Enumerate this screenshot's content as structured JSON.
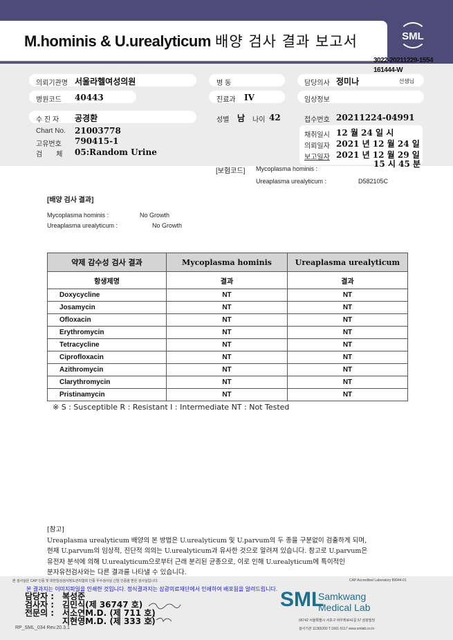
{
  "header": {
    "title_en": "M.hominis & U.urealyticum",
    "title_ko": "배양 검사 결과 보고서",
    "logo": "SML",
    "doc_id_1": "3022-20211229-1554",
    "doc_id_2": "161444-W"
  },
  "patient": {
    "institution_label": "의뢰기관명",
    "institution": "서울라헬여성의원",
    "ward_label": "병 동",
    "doctor_label": "담당의사",
    "doctor": "정미나",
    "doctor_suffix": "선생님",
    "hospital_code_label": "병원코드",
    "hospital_code": "40443",
    "dept_label": "진료과",
    "dept": "IV",
    "clinical_label": "임상정보",
    "name_label": "수 진 자",
    "name": "공경환",
    "sex_label": "성별",
    "sex": "남",
    "age_label": "나이",
    "age": "42",
    "receipt_label": "접수번호",
    "receipt": "20211224-04991",
    "chart_label": "Chart No.",
    "chart": "21003778",
    "uid_label": "고유번호",
    "uid": "790415-1",
    "specimen_label": "검　　체",
    "specimen": "05:Random Urine",
    "collect_label": "채취일시",
    "collect": "12 월 24 일 시",
    "request_label": "의뢰일자",
    "request": "2021 년 12 월 24 일",
    "report_label": "보고일자",
    "report": "2021 년 12 월 29 일",
    "report_time": "15 시 45 분"
  },
  "insurance": {
    "label": "[보험코드]",
    "mh_label": "Mycoplasma hominis :",
    "uu_label": "Ureaplasma urealyticum :",
    "uu_code": "D582105C"
  },
  "culture": {
    "title": "[배양 검사 결과]",
    "mh_label": "Mycoplasma hominis :",
    "mh": "No Growth",
    "uu_label": "Ureaplasma urealyticum :",
    "uu": "No Growth"
  },
  "sens": {
    "headers": [
      "약제 감수성 검사 결과",
      "Mycoplasma hominis",
      "Ureaplasma urealyticum"
    ],
    "sub": [
      "항생제명",
      "결과",
      "결과"
    ],
    "rows": [
      [
        "Doxycycline",
        "NT",
        "NT"
      ],
      [
        "Josamycin",
        "NT",
        "NT"
      ],
      [
        "Ofloxacin",
        "NT",
        "NT"
      ],
      [
        "Erythromycin",
        "NT",
        "NT"
      ],
      [
        "Tetracycline",
        "NT",
        "NT"
      ],
      [
        "Ciprofloxacin",
        "NT",
        "NT"
      ],
      [
        "Azithromycin",
        "NT",
        "NT"
      ],
      [
        "Clarythromycin",
        "NT",
        "NT"
      ],
      [
        "Pristinamycin",
        "NT",
        "NT"
      ]
    ],
    "legend": "※ S : Susceptible R : Resistant I : Intermediate NT : Not Tested"
  },
  "note": {
    "title": "[참고]",
    "lines": [
      "Ureaplasma urealyticum 배양의 본 방법은 U.urealyticum 및 U.parvum의 두 종을 구분없이 검출하게 되며,",
      "현재 U.parvum의 임상적, 진단적 의의는 U.urealyticum과 유사한 것으로 알려져 있습니다. 참고로 U.parvum은",
      "유전자 분석에 의해 U.urealyticum으로부터 근래 분리된 균종으로, 이로 인해 U.urealyticum에 특이적인",
      "분자유전검사와는 다른 결과를 나타낼 수 있습니다."
    ]
  },
  "footer": {
    "cert": "본 검사실은 CAP 인증 및 대한임상검사정도관리협회 인증 우수검사실 신임 인증을 받은 검사실입니다.",
    "cap": "CAP Accredited Laboratory 89944-01",
    "notice": "본 결과지는 이미지파일을 인쇄한 것입니다. 정식결과지는 삼광의료재단에서 인쇄하여 배포됨을 알려드립니다.",
    "manager_label": "담당자 :",
    "manager": "복성준",
    "tester_label": "검사자 :",
    "tester": "김민식(제 36747 호)",
    "specialist_label": "전문의 :",
    "specialist1": "서소연M.D. (제 711 호)",
    "specialist2": "지현영M.D. (제 333 호)",
    "lab_logo": "SML",
    "lab_name1": "Samkwang",
    "lab_name2": "Medical Lab",
    "address": "06742 서울특별시 서초구 바우뫼로41길 57 삼광빌딩",
    "contact": "검사기관 11365200 T.1661-5117 www.smlab.co.kr",
    "form": "RP_SML_034 Rev.20.3.1"
  }
}
